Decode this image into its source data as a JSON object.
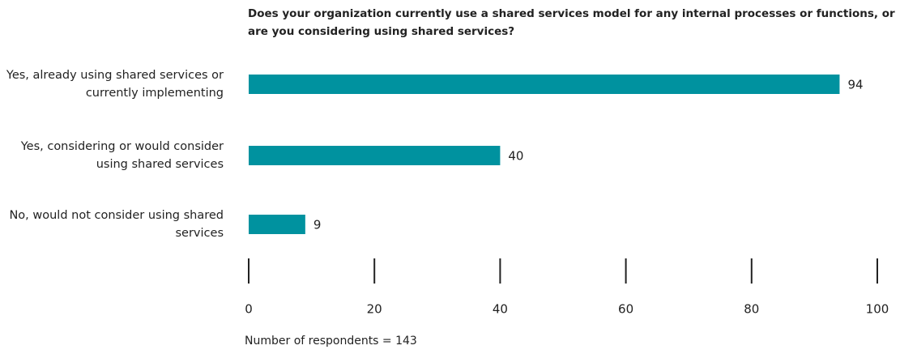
{
  "chart_data": {
    "type": "bar",
    "orientation": "horizontal",
    "title": "Does your organization currently use a shared services model for any internal processes or functions, or are you considering using shared services?",
    "categories": [
      "Yes, already using shared services or currently implementing",
      "Yes, considering or would consider using shared services",
      "No, would not consider using shared services"
    ],
    "values": [
      94,
      40,
      9
    ],
    "color": "#00929f",
    "xlim": [
      0,
      100
    ],
    "xticks": [
      0,
      20,
      40,
      60,
      80,
      100
    ],
    "note": "Number of respondents = 143"
  }
}
